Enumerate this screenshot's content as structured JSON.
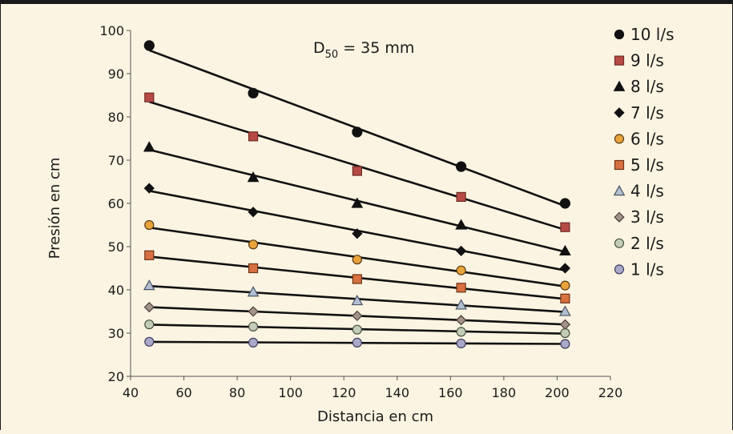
{
  "chart_data": {
    "type": "scatter",
    "title": "",
    "annotation": {
      "base": "D",
      "sub": "50",
      "rest": " = 35 mm"
    },
    "xlabel": "Distancia en cm",
    "ylabel": "Presión en cm",
    "xlim": [
      40,
      220
    ],
    "ylim": [
      20,
      100
    ],
    "xticks": [
      40,
      60,
      80,
      100,
      120,
      140,
      160,
      180,
      200,
      220
    ],
    "yticks": [
      20,
      30,
      40,
      50,
      60,
      70,
      80,
      90,
      100
    ],
    "grid": false,
    "legend_position": "right",
    "trendlines": "linear",
    "x": [
      47,
      86,
      125,
      164,
      203
    ],
    "series": [
      {
        "name": "10 l/s",
        "marker": "circle",
        "fill": "#111111",
        "stroke": "#111111",
        "values": [
          96.5,
          85.5,
          76.5,
          68.5,
          60
        ]
      },
      {
        "name": "9 l/s",
        "marker": "square",
        "fill": "#b84a45",
        "stroke": "#6e2a25",
        "values": [
          84.5,
          75.5,
          67.5,
          61.5,
          54.5
        ]
      },
      {
        "name": "8 l/s",
        "marker": "triangle",
        "fill": "#111111",
        "stroke": "#111111",
        "values": [
          73,
          66,
          60,
          55,
          49
        ]
      },
      {
        "name": "7 l/s",
        "marker": "diamond",
        "fill": "#111111",
        "stroke": "#111111",
        "values": [
          63.5,
          58,
          53,
          49,
          45
        ]
      },
      {
        "name": "6 l/s",
        "marker": "circle",
        "fill": "#e8a33a",
        "stroke": "#5a3a14",
        "values": [
          55,
          50.5,
          47,
          44.5,
          41
        ]
      },
      {
        "name": "5 l/s",
        "marker": "square",
        "fill": "#d9703f",
        "stroke": "#6a3418",
        "values": [
          48,
          45,
          42.5,
          40.5,
          38
        ]
      },
      {
        "name": "4 l/s",
        "marker": "triangle",
        "fill": "#b2bfd0",
        "stroke": "#4a5566",
        "values": [
          41,
          39.5,
          37.5,
          36.5,
          35
        ]
      },
      {
        "name": "3 l/s",
        "marker": "diamond",
        "fill": "#a3938a",
        "stroke": "#4a3e38",
        "values": [
          36,
          35,
          34,
          33,
          32
        ]
      },
      {
        "name": "2 l/s",
        "marker": "circle",
        "fill": "#c3ccb8",
        "stroke": "#47513e",
        "values": [
          32,
          31.5,
          30.8,
          30.3,
          30
        ]
      },
      {
        "name": "1 l/s",
        "marker": "circle",
        "fill": "#a9a8c9",
        "stroke": "#3e3d5e",
        "values": [
          28,
          27.8,
          27.8,
          27.6,
          27.5
        ]
      }
    ]
  }
}
